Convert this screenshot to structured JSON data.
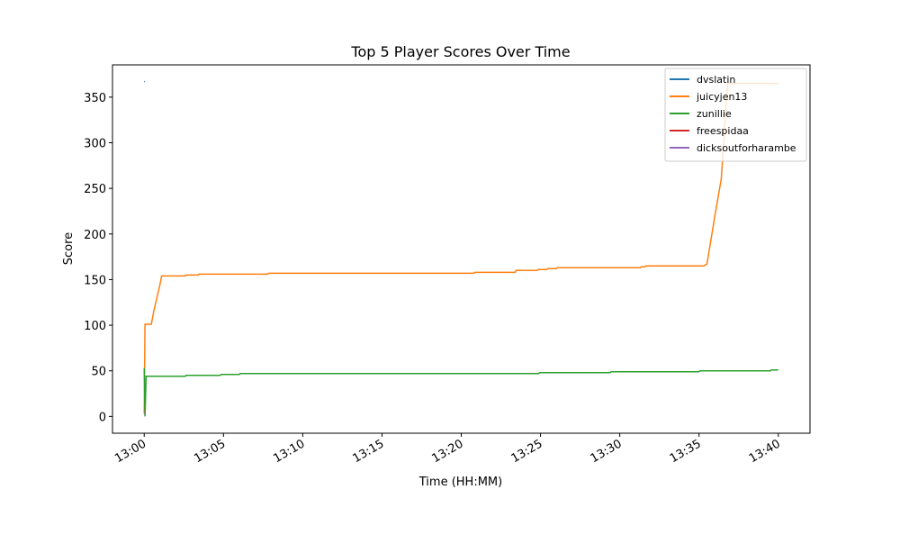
{
  "chart_data": {
    "type": "line",
    "title": "Top 5 Player Scores Over Time",
    "x_label": "Time (HH:MM)",
    "y_label": "Score",
    "xlim": [
      -2,
      42
    ],
    "ylim": [
      -18.4,
      385.4
    ],
    "xticks": [
      {
        "value": 0,
        "label": "13:00"
      },
      {
        "value": 5,
        "label": "13:05"
      },
      {
        "value": 10,
        "label": "13:10"
      },
      {
        "value": 15,
        "label": "13:15"
      },
      {
        "value": 20,
        "label": "13:20"
      },
      {
        "value": 25,
        "label": "13:25"
      },
      {
        "value": 30,
        "label": "13:30"
      },
      {
        "value": 35,
        "label": "13:35"
      },
      {
        "value": 40,
        "label": "13:40"
      }
    ],
    "yticks": [
      0,
      50,
      100,
      150,
      200,
      250,
      300,
      350
    ],
    "legend": "upper right",
    "series": [
      {
        "name": "dvslatin",
        "color": "#1f77b4",
        "x": [
          0,
          0.05
        ],
        "values": [
          367,
          367
        ]
      },
      {
        "name": "juicyjen13",
        "color": "#ff7f0e",
        "x": [
          0,
          0.05,
          0.45,
          0.6,
          0.8,
          1.0,
          1.1,
          2.6,
          2.65,
          3.4,
          3.45,
          7.8,
          7.85,
          20.8,
          20.85,
          23.4,
          23.45,
          24.8,
          24.85,
          25.4,
          25.45,
          26.0,
          26.05,
          31.3,
          31.35,
          31.6,
          31.65,
          35.3,
          35.5,
          36.0,
          36.4,
          36.8,
          40.0
        ],
        "values": [
          3,
          101,
          101,
          115,
          130,
          145,
          154,
          154,
          155,
          155,
          156,
          156,
          157,
          157,
          158,
          158,
          160,
          160,
          161,
          161,
          162,
          162,
          163,
          163,
          164,
          164,
          165,
          165,
          167,
          220,
          260,
          365,
          365
        ]
      },
      {
        "name": "zunillie",
        "color": "#2ca02c",
        "x": [
          0,
          0.05,
          0.12,
          2.6,
          2.65,
          4.8,
          4.85,
          6.0,
          6.05,
          24.9,
          24.95,
          29.4,
          29.45,
          35.0,
          35.05,
          39.5,
          39.55,
          40.0
        ],
        "values": [
          53,
          0,
          44,
          44,
          45,
          45,
          46,
          46,
          47,
          47,
          48,
          48,
          49,
          49,
          50,
          50,
          51,
          51
        ]
      },
      {
        "name": "freespidaa",
        "color": "#d62728",
        "x": [
          0,
          0.05
        ],
        "values": [
          4,
          4
        ]
      },
      {
        "name": "dicksoutforharambe",
        "color": "#9467bd",
        "x": [
          0,
          0.05
        ],
        "values": [
          4,
          4
        ]
      }
    ]
  }
}
